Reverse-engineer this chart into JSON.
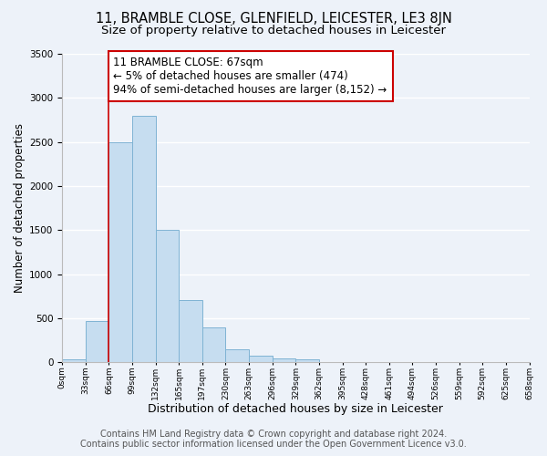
{
  "title": "11, BRAMBLE CLOSE, GLENFIELD, LEICESTER, LE3 8JN",
  "subtitle": "Size of property relative to detached houses in Leicester",
  "xlabel": "Distribution of detached houses by size in Leicester",
  "ylabel": "Number of detached properties",
  "bin_labels": [
    "0sqm",
    "33sqm",
    "66sqm",
    "99sqm",
    "132sqm",
    "165sqm",
    "197sqm",
    "230sqm",
    "263sqm",
    "296sqm",
    "329sqm",
    "362sqm",
    "395sqm",
    "428sqm",
    "461sqm",
    "494sqm",
    "526sqm",
    "559sqm",
    "592sqm",
    "625sqm",
    "658sqm"
  ],
  "bar_values": [
    30,
    470,
    2500,
    2800,
    1500,
    710,
    400,
    150,
    75,
    40,
    35,
    0,
    0,
    0,
    0,
    0,
    0,
    0,
    0,
    0
  ],
  "bar_color": "#c6ddf0",
  "bar_edge_color": "#7fb3d3",
  "background_color": "#edf2f9",
  "grid_color": "#ffffff",
  "vline_x": 2,
  "vline_color": "#cc0000",
  "annotation_text": "11 BRAMBLE CLOSE: 67sqm\n← 5% of detached houses are smaller (474)\n94% of semi-detached houses are larger (8,152) →",
  "annotation_box_color": "#cc0000",
  "ylim": [
    0,
    3500
  ],
  "footer_line1": "Contains HM Land Registry data © Crown copyright and database right 2024.",
  "footer_line2": "Contains public sector information licensed under the Open Government Licence v3.0.",
  "title_fontsize": 10.5,
  "subtitle_fontsize": 9.5,
  "xlabel_fontsize": 9,
  "ylabel_fontsize": 8.5,
  "annotation_fontsize": 8.5,
  "footer_fontsize": 7
}
